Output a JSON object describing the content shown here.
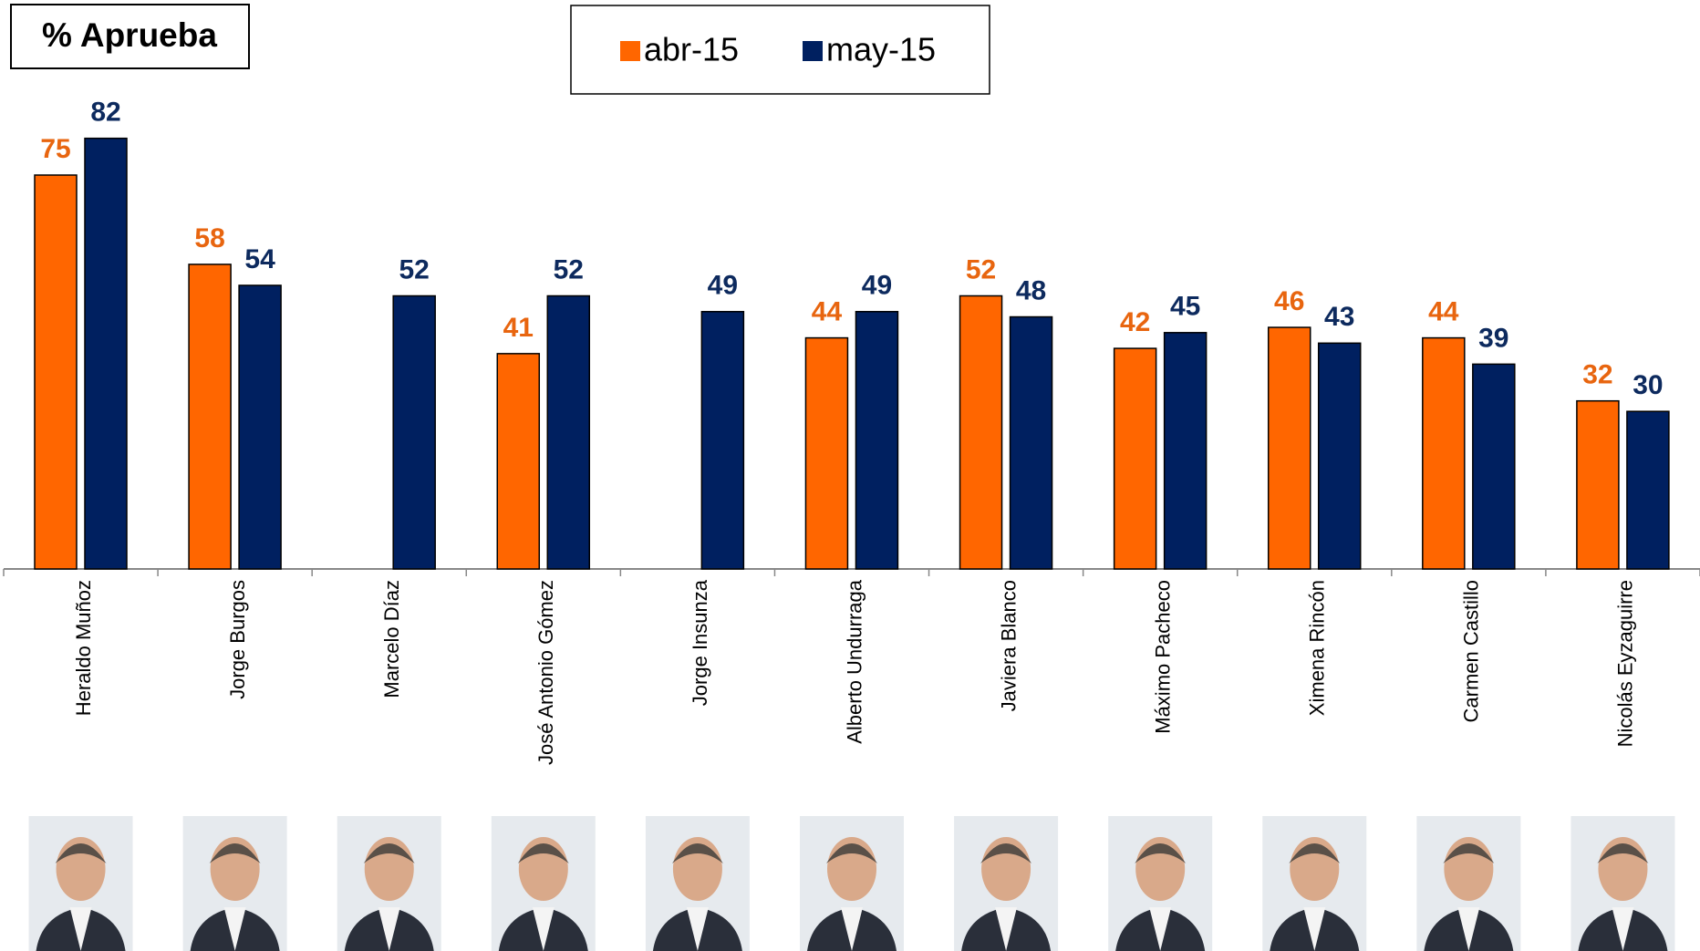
{
  "chart_data": {
    "type": "bar",
    "title": "% Aprueba",
    "categories": [
      "Heraldo Muñoz",
      "Jorge Burgos",
      "Marcelo Díaz",
      "José Antonio Gómez",
      "Jorge Insunza",
      "Alberto Undurraga",
      "Javiera Blanco",
      "Máximo Pacheco",
      "Ximena Rincón",
      "Carmen Castillo",
      "Nicolás Eyzaguirre"
    ],
    "series": [
      {
        "name": "abr-15",
        "color": "#ff6600",
        "label_color": "#e8650f",
        "values": [
          75,
          58,
          null,
          41,
          null,
          44,
          52,
          42,
          46,
          44,
          32
        ]
      },
      {
        "name": "may-15",
        "color": "#002060",
        "label_color": "#0d2a5e",
        "values": [
          82,
          54,
          52,
          52,
          49,
          49,
          48,
          45,
          43,
          39,
          30
        ]
      }
    ],
    "ylim": [
      0,
      100
    ]
  }
}
